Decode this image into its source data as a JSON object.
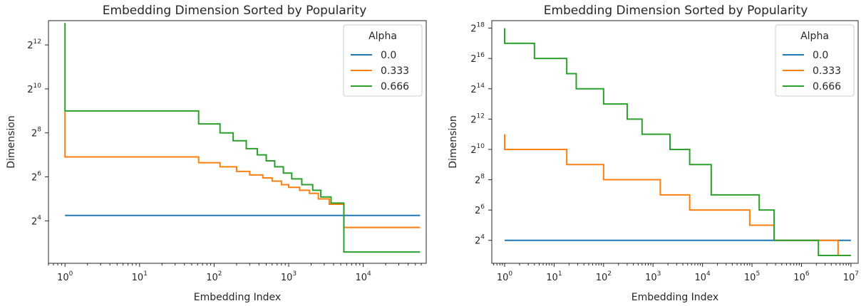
{
  "chart_data": [
    {
      "type": "line",
      "title": "Embedding Dimension Sorted by Popularity",
      "xlabel": "Embedding Index",
      "ylabel": "Dimension",
      "x_scale": "log10",
      "y_scale": "log2",
      "xlim": [
        0.6,
        70000
      ],
      "ylim": [
        4.2,
        8800
      ],
      "x_ticks": [
        {
          "base": "10",
          "exp": "0",
          "value": 1
        },
        {
          "base": "10",
          "exp": "1",
          "value": 10
        },
        {
          "base": "10",
          "exp": "2",
          "value": 100
        },
        {
          "base": "10",
          "exp": "3",
          "value": 1000
        },
        {
          "base": "10",
          "exp": "4",
          "value": 10000
        }
      ],
      "y_ticks": [
        {
          "base": "2",
          "exp": "4",
          "value": 16
        },
        {
          "base": "2",
          "exp": "6",
          "value": 64
        },
        {
          "base": "2",
          "exp": "8",
          "value": 256
        },
        {
          "base": "2",
          "exp": "10",
          "value": 1024
        },
        {
          "base": "2",
          "exp": "12",
          "value": 4096
        }
      ],
      "grid": false,
      "legend": {
        "title": "Alpha",
        "placement": "top-right"
      },
      "series": [
        {
          "name": "0.0",
          "color": "#1f77b4",
          "points": [
            [
              1,
              19
            ],
            [
              58000,
              19
            ]
          ]
        },
        {
          "name": "0.333",
          "color": "#ff7f0e",
          "points": [
            [
              1,
              500
            ],
            [
              1,
              120
            ],
            [
              62,
              120
            ],
            [
              62,
              100
            ],
            [
              120,
              100
            ],
            [
              120,
              88
            ],
            [
              200,
              88
            ],
            [
              200,
              76
            ],
            [
              300,
              76
            ],
            [
              300,
              68
            ],
            [
              450,
              68
            ],
            [
              450,
              62
            ],
            [
              600,
              62
            ],
            [
              600,
              56
            ],
            [
              800,
              56
            ],
            [
              800,
              50
            ],
            [
              1000,
              50
            ],
            [
              1000,
              46
            ],
            [
              1400,
              46
            ],
            [
              1400,
              42
            ],
            [
              1900,
              42
            ],
            [
              1900,
              38
            ],
            [
              2500,
              38
            ],
            [
              2500,
              32
            ],
            [
              3500,
              32
            ],
            [
              3500,
              27
            ],
            [
              5500,
              27
            ],
            [
              5500,
              13
            ],
            [
              58000,
              13
            ]
          ]
        },
        {
          "name": "0.666",
          "color": "#2ca02c",
          "points": [
            [
              1,
              8192
            ],
            [
              1,
              512
            ],
            [
              62,
              512
            ],
            [
              62,
              340
            ],
            [
              120,
              340
            ],
            [
              120,
              256
            ],
            [
              180,
              256
            ],
            [
              180,
              200
            ],
            [
              270,
              200
            ],
            [
              270,
              156
            ],
            [
              380,
              156
            ],
            [
              380,
              128
            ],
            [
              500,
              128
            ],
            [
              500,
              106
            ],
            [
              650,
              106
            ],
            [
              650,
              88
            ],
            [
              850,
              88
            ],
            [
              850,
              72
            ],
            [
              1100,
              72
            ],
            [
              1100,
              60
            ],
            [
              1500,
              60
            ],
            [
              1500,
              50
            ],
            [
              2100,
              50
            ],
            [
              2100,
              42
            ],
            [
              2700,
              42
            ],
            [
              2700,
              34
            ],
            [
              3700,
              34
            ],
            [
              3700,
              28
            ],
            [
              5500,
              28
            ],
            [
              5500,
              6
            ],
            [
              58000,
              6
            ]
          ]
        }
      ]
    },
    {
      "type": "line",
      "title": "Embedding Dimension Sorted by Popularity",
      "xlabel": "Embedding Index",
      "ylabel": "Dimension",
      "x_scale": "log10",
      "y_scale": "log2",
      "xlim": [
        0.55,
        14000000
      ],
      "ylim": [
        5.6,
        370000
      ],
      "x_ticks": [
        {
          "base": "10",
          "exp": "0",
          "value": 1
        },
        {
          "base": "10",
          "exp": "1",
          "value": 10
        },
        {
          "base": "10",
          "exp": "2",
          "value": 100
        },
        {
          "base": "10",
          "exp": "3",
          "value": 1000
        },
        {
          "base": "10",
          "exp": "4",
          "value": 10000
        },
        {
          "base": "10",
          "exp": "5",
          "value": 100000
        },
        {
          "base": "10",
          "exp": "6",
          "value": 1000000
        },
        {
          "base": "10",
          "exp": "7",
          "value": 10000000
        }
      ],
      "y_ticks": [
        {
          "base": "2",
          "exp": "4",
          "value": 16
        },
        {
          "base": "2",
          "exp": "6",
          "value": 64
        },
        {
          "base": "2",
          "exp": "8",
          "value": 256
        },
        {
          "base": "2",
          "exp": "10",
          "value": 1024
        },
        {
          "base": "2",
          "exp": "12",
          "value": 4096
        },
        {
          "base": "2",
          "exp": "14",
          "value": 16384
        },
        {
          "base": "2",
          "exp": "16",
          "value": 65536
        },
        {
          "base": "2",
          "exp": "18",
          "value": 262144
        }
      ],
      "grid": false,
      "legend": {
        "title": "Alpha",
        "placement": "top-right"
      },
      "series": [
        {
          "name": "0.0",
          "color": "#1f77b4",
          "points": [
            [
              1,
              16
            ],
            [
              10000000,
              16
            ]
          ]
        },
        {
          "name": "0.333",
          "color": "#ff7f0e",
          "points": [
            [
              1,
              2048
            ],
            [
              1,
              1024
            ],
            [
              18,
              1024
            ],
            [
              18,
              512
            ],
            [
              100,
              512
            ],
            [
              100,
              256
            ],
            [
              1400,
              256
            ],
            [
              1400,
              128
            ],
            [
              5500,
              128
            ],
            [
              5500,
              64
            ],
            [
              90000,
              64
            ],
            [
              90000,
              32
            ],
            [
              280000,
              32
            ],
            [
              280000,
              16
            ],
            [
              5500000,
              16
            ],
            [
              5500000,
              8
            ],
            [
              10000000,
              8
            ]
          ]
        },
        {
          "name": "0.666",
          "color": "#2ca02c",
          "points": [
            [
              1,
              262144
            ],
            [
              1,
              131072
            ],
            [
              4,
              131072
            ],
            [
              4,
              65536
            ],
            [
              18,
              65536
            ],
            [
              18,
              32768
            ],
            [
              28,
              32768
            ],
            [
              28,
              16384
            ],
            [
              100,
              16384
            ],
            [
              100,
              8192
            ],
            [
              300,
              8192
            ],
            [
              300,
              4096
            ],
            [
              600,
              4096
            ],
            [
              600,
              2048
            ],
            [
              2200,
              2048
            ],
            [
              2200,
              1024
            ],
            [
              5500,
              1024
            ],
            [
              5500,
              512
            ],
            [
              15000,
              512
            ],
            [
              15000,
              128
            ],
            [
              140000,
              128
            ],
            [
              140000,
              64
            ],
            [
              280000,
              64
            ],
            [
              280000,
              16
            ],
            [
              2200000,
              16
            ],
            [
              2200000,
              8
            ],
            [
              10000000,
              8
            ]
          ]
        }
      ]
    }
  ]
}
